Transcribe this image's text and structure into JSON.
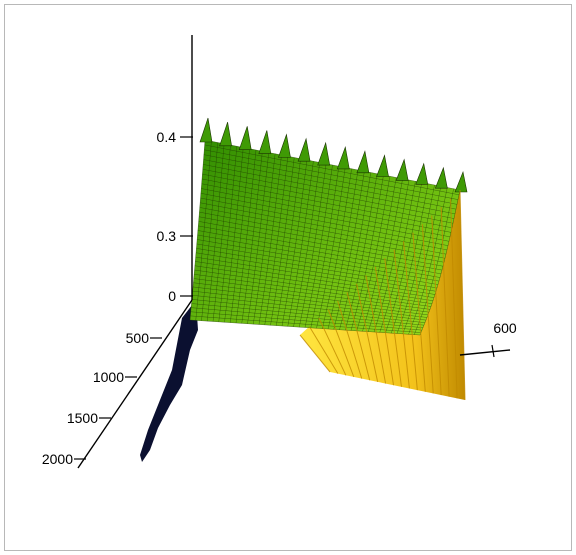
{
  "chart_data": {
    "type": "surface",
    "z_axis": {
      "ticks": [
        0,
        0.3,
        0.4
      ],
      "tick_labels": [
        "0",
        "0.3",
        "0.4"
      ]
    },
    "y_axis": {
      "ticks": [
        500,
        1000,
        1500,
        2000
      ],
      "tick_labels": [
        "500",
        "1000",
        "1500",
        "2000"
      ]
    },
    "x_axis": {
      "ticks": [
        600
      ],
      "tick_labels": [
        "600"
      ]
    },
    "surface": {
      "description_values": "smooth saturating surface rising to about 0.4-0.42, with a high ridge along the back edge",
      "peak_z": 0.42,
      "wall_z": 0.35,
      "rows": 40
    },
    "colors": {
      "surface_back": "#2e8b00",
      "surface_front": "#9bdc1e",
      "mesh_line": "#1a3300",
      "wall_light": "#ffe640",
      "wall_dark": "#c08a00",
      "base_dark": "#0b1030",
      "axis": "#000000"
    }
  }
}
